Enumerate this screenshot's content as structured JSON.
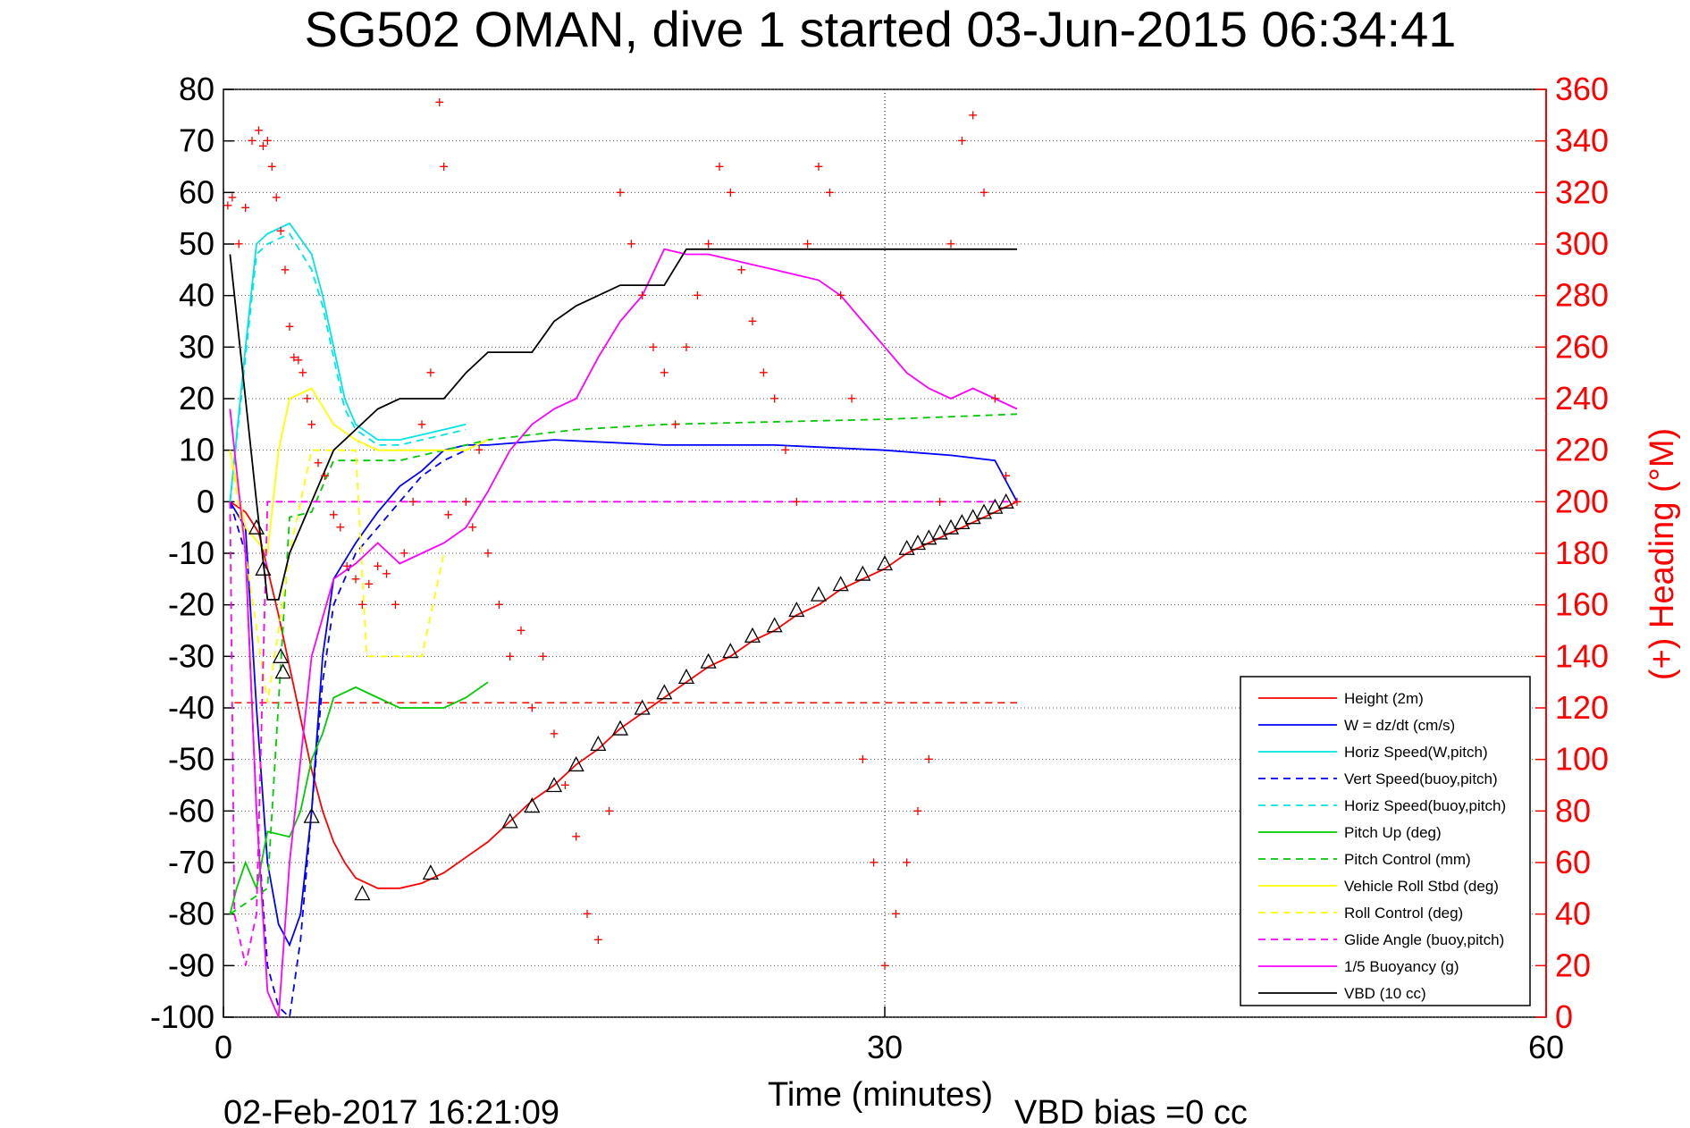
{
  "chart_data": {
    "type": "line",
    "title": "SG502 OMAN, dive 1 started 03-Jun-2015 06:34:41",
    "xlabel": "Time (minutes)",
    "ylabel": "",
    "ylabel_right": "(+) Heading (°M)",
    "footer_left": "02-Feb-2017 16:21:09",
    "footer_right": "VBD bias =0 cc",
    "xlim": [
      0,
      60
    ],
    "ylim": [
      -100,
      80
    ],
    "ylim_right": [
      0,
      360
    ],
    "xticks": [
      "0",
      "30",
      "60"
    ],
    "yticks": [
      "80",
      "70",
      "60",
      "50",
      "40",
      "30",
      "20",
      "10",
      "0",
      "-10",
      "-20",
      "-30",
      "-40",
      "-50",
      "-60",
      "-70",
      "-80",
      "-90",
      "-100"
    ],
    "yticks_right": [
      "360",
      "340",
      "320",
      "300",
      "280",
      "260",
      "240",
      "220",
      "200",
      "180",
      "160",
      "140",
      "120",
      "100",
      "80",
      "60",
      "40",
      "20",
      "0"
    ],
    "grid": true,
    "legend_position": "bottom-right",
    "colors": {
      "height": "#ff0000",
      "w": "#0000ff",
      "horiz": "#00e5e5",
      "pitch": "#00cc00",
      "roll": "#ffff00",
      "glide": "#ff00ff",
      "vbd": "#000000",
      "heading": "#ff0000"
    },
    "series": [
      {
        "name": "Height (2m)",
        "color": "#ff0000",
        "dash": "solid",
        "x": [
          0.3,
          1,
          1.6,
          2,
          2.5,
          3,
          3.5,
          4,
          4.5,
          5,
          5.5,
          6,
          7,
          8,
          9,
          10,
          11,
          12,
          13,
          14,
          15,
          16,
          17,
          18,
          19,
          20,
          21,
          22,
          23,
          24,
          25,
          26,
          27,
          28,
          29,
          30,
          31,
          32,
          33,
          34,
          35,
          36
        ],
        "y": [
          0,
          -2,
          -6,
          -13,
          -22,
          -32,
          -42,
          -52,
          -60,
          -66,
          -70,
          -73,
          -75,
          -75,
          -74,
          -72,
          -69,
          -66,
          -62,
          -58,
          -55,
          -51,
          -48,
          -44,
          -41,
          -38,
          -35,
          -32,
          -30,
          -27,
          -25,
          -22,
          -20,
          -17,
          -15,
          -13,
          -10,
          -8,
          -6,
          -4,
          -2,
          0
        ]
      },
      {
        "name": "W = dz/dt (cm/s)",
        "color": "#0000ff",
        "dash": "solid",
        "x": [
          0.3,
          1,
          1.5,
          2,
          2.5,
          3,
          3.5,
          4,
          4.5,
          5,
          6,
          7,
          8,
          9,
          10,
          11,
          12,
          15,
          20,
          25,
          30,
          33,
          35,
          36
        ],
        "y": [
          0,
          -5,
          -40,
          -70,
          -82,
          -86,
          -80,
          -60,
          -30,
          -15,
          -8,
          -2,
          3,
          6,
          10,
          11,
          11,
          12,
          11,
          11,
          10,
          9,
          8,
          0
        ]
      },
      {
        "name": "Horiz Speed(W,pitch)",
        "color": "#00e5e5",
        "dash": "solid",
        "x": [
          0.3,
          1,
          1.5,
          2,
          3,
          4,
          4.5,
          5,
          5.5,
          6,
          7,
          8,
          9,
          10,
          11
        ],
        "y": [
          0,
          30,
          50,
          52,
          54,
          48,
          40,
          30,
          20,
          15,
          12,
          12,
          13,
          14,
          15
        ]
      },
      {
        "name": "Vert Speed(buoy,pitch)",
        "color": "#0000ff",
        "dash": "dashed",
        "x": [
          0.3,
          1,
          1.5,
          2,
          2.5,
          3,
          3.5,
          4,
          4.5,
          5,
          6,
          7,
          8,
          9,
          10,
          11
        ],
        "y": [
          0,
          -10,
          -60,
          -90,
          -98,
          -100,
          -85,
          -60,
          -35,
          -20,
          -10,
          -5,
          0,
          5,
          8,
          10
        ]
      },
      {
        "name": "Horiz Speed(buoy,pitch)",
        "color": "#00e5e5",
        "dash": "dashed",
        "x": [
          0.3,
          1,
          1.5,
          2,
          3,
          4,
          4.5,
          5,
          5.5,
          6,
          7,
          8,
          9,
          10,
          11
        ],
        "y": [
          0,
          28,
          48,
          50,
          52,
          45,
          38,
          28,
          18,
          14,
          11,
          11,
          12,
          13,
          14
        ]
      },
      {
        "name": "Pitch Up (deg)",
        "color": "#00cc00",
        "dash": "solid",
        "x": [
          0.3,
          0.6,
          1,
          1.5,
          2,
          3,
          3.5,
          4,
          4.5,
          5,
          6,
          7,
          8,
          9,
          10,
          11,
          12
        ],
        "y": [
          -80,
          -75,
          -70,
          -75,
          -64,
          -65,
          -60,
          -50,
          -45,
          -38,
          -36,
          -38,
          -40,
          -40,
          -40,
          -38,
          -35
        ]
      },
      {
        "name": "Pitch Control (mm)",
        "color": "#00cc00",
        "dash": "dashed",
        "x": [
          0.3,
          2,
          3,
          4,
          5,
          6,
          8,
          10,
          12,
          16,
          20,
          30,
          36
        ],
        "y": [
          -80,
          -75,
          -3,
          -2,
          8,
          8,
          8,
          10,
          12,
          14,
          15,
          16,
          17
        ]
      },
      {
        "name": "Vehicle Roll Stbd (deg)",
        "color": "#ffff00",
        "dash": "solid",
        "x": [
          0.3,
          1,
          2,
          2.5,
          3,
          4,
          5,
          6,
          7,
          8,
          9,
          10,
          11,
          12
        ],
        "y": [
          10,
          -5,
          -10,
          10,
          20,
          22,
          15,
          12,
          10,
          10,
          10,
          10,
          10,
          12
        ]
      },
      {
        "name": "Roll Control (deg)",
        "color": "#ffff00",
        "dash": "dashed",
        "x": [
          0.3,
          1,
          2,
          2.5,
          3,
          4,
          5,
          6,
          6.5,
          7,
          8,
          9,
          10
        ],
        "y": [
          10,
          -10,
          -39,
          -25,
          -10,
          10,
          10,
          10,
          -30,
          -30,
          -30,
          -30,
          -10
        ]
      },
      {
        "name": "Glide Angle (buoy,pitch)",
        "color": "#ff00ff",
        "dash": "dashed",
        "x": [
          0.3,
          0.5,
          1,
          1.5,
          2,
          36
        ],
        "y": [
          0,
          -80,
          -90,
          -80,
          0,
          0
        ]
      },
      {
        "name": "1/5 Buoyancy (g)",
        "color": "#ff00ff",
        "dash": "solid",
        "x": [
          0.3,
          1,
          1.5,
          2,
          2.5,
          3,
          4,
          5,
          6,
          7,
          8,
          9,
          10,
          11,
          12,
          13,
          14,
          15,
          16,
          17,
          18,
          19,
          20,
          21,
          22,
          23,
          24,
          25,
          26,
          27,
          28,
          29,
          30,
          31,
          32,
          33,
          34,
          35,
          36
        ],
        "y": [
          18,
          -10,
          -60,
          -95,
          -100,
          -70,
          -30,
          -15,
          -12,
          -8,
          -12,
          -10,
          -8,
          -5,
          2,
          10,
          15,
          18,
          20,
          28,
          35,
          40,
          49,
          48,
          48,
          47,
          46,
          45,
          44,
          43,
          40,
          35,
          30,
          25,
          22,
          20,
          22,
          20,
          18
        ]
      },
      {
        "name": "VBD (10 cc)",
        "color": "#000000",
        "dash": "solid",
        "x": [
          0.3,
          1,
          1.5,
          2,
          2.5,
          3,
          4,
          5,
          6,
          7,
          8,
          9,
          10,
          11,
          12,
          13,
          14,
          15,
          16,
          17,
          18,
          19,
          20,
          21,
          22,
          23,
          24,
          25,
          26,
          27,
          28,
          29,
          30,
          31,
          32,
          33,
          34,
          35,
          36
        ],
        "y": [
          48,
          20,
          0,
          -19,
          -19,
          -10,
          0,
          10,
          14,
          18,
          20,
          20,
          20,
          25,
          29,
          29,
          29,
          35,
          38,
          40,
          42,
          42,
          42,
          49,
          49,
          49,
          49,
          49,
          49,
          49,
          49,
          49,
          49,
          49,
          49,
          49,
          49,
          49,
          49
        ]
      }
    ],
    "heading_points": {
      "name": "(+) Heading",
      "x": [
        0.2,
        0.4,
        0.7,
        1.0,
        1.3,
        1.6,
        1.8,
        2.0,
        2.2,
        2.4,
        2.6,
        2.8,
        3.0,
        3.2,
        3.4,
        3.6,
        3.8,
        4.0,
        4.3,
        4.6,
        5.0,
        5.3,
        5.6,
        6.0,
        6.3,
        6.6,
        7.0,
        7.4,
        7.8,
        8.2,
        8.6,
        9.0,
        9.4,
        9.8,
        10.0,
        10.2,
        11.0,
        11.3,
        11.6,
        12.0,
        12.5,
        13.0,
        13.5,
        14.0,
        14.5,
        15.0,
        15.5,
        16.0,
        16.5,
        17.0,
        17.5,
        18.0,
        18.5,
        19.0,
        19.5,
        20.0,
        20.5,
        21.0,
        21.5,
        22.0,
        22.5,
        23.0,
        23.5,
        24.0,
        24.5,
        25.0,
        25.5,
        26.0,
        26.5,
        27.0,
        27.5,
        28.0,
        28.5,
        29.0,
        29.5,
        30.0,
        30.5,
        31.0,
        31.5,
        32.0,
        32.5,
        33.0,
        33.5,
        34.0,
        34.5,
        35.0,
        35.5,
        36.0
      ],
      "y": [
        315,
        318,
        300,
        314,
        340,
        344,
        338,
        340,
        330,
        318,
        305,
        290,
        268,
        256,
        255,
        250,
        240,
        230,
        215,
        210,
        195,
        190,
        175,
        170,
        160,
        168,
        175,
        172,
        160,
        180,
        200,
        230,
        250,
        355,
        330,
        195,
        200,
        190,
        220,
        180,
        160,
        140,
        150,
        120,
        140,
        110,
        90,
        70,
        40,
        30,
        80,
        320,
        300,
        280,
        260,
        250,
        230,
        260,
        280,
        300,
        330,
        320,
        290,
        270,
        250,
        240,
        220,
        200,
        300,
        330,
        320,
        280,
        240,
        100,
        60,
        20,
        40,
        60,
        80,
        100,
        200,
        300,
        340,
        350,
        320,
        240,
        210,
        200
      ]
    },
    "triangle_markers": {
      "x": [
        1.5,
        1.8,
        2.6,
        2.7,
        4.0,
        6.3,
        9.4,
        13.0,
        14.0,
        15.0,
        16.0,
        17.0,
        18.0,
        19.0,
        20.0,
        21.0,
        22.0,
        23.0,
        24.0,
        25.0,
        26.0,
        27.0,
        28.0,
        29.0,
        30.0,
        31.0,
        31.5,
        32.0,
        32.5,
        33.0,
        33.5,
        34.0,
        34.5,
        35.0,
        35.5
      ],
      "y": [
        -5,
        -13,
        -30,
        -33,
        -61,
        -76,
        -72,
        -62,
        -59,
        -55,
        -51,
        -47,
        -44,
        -40,
        -37,
        -34,
        -31,
        -29,
        -26,
        -24,
        -21,
        -18,
        -16,
        -14,
        -12,
        -9,
        -8,
        -7,
        -6,
        -5,
        -4,
        -3,
        -2,
        -1,
        0
      ]
    },
    "vertical_line_x": 30,
    "heading_ref_y": -39
  }
}
